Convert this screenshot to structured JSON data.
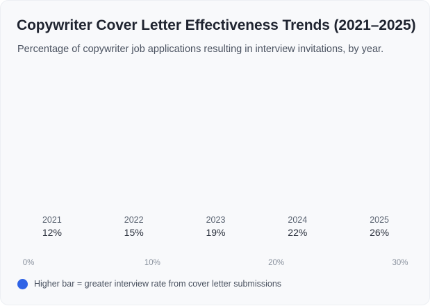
{
  "title": "Copywriter Cover Letter Effectiveness Trends (2021–2025)",
  "subtitle": "Percentage of copywriter job applications resulting in interview invitations, by year.",
  "legend": {
    "label": "Higher bar = greater interview rate from cover letter submissions",
    "color": "#2f63e6"
  },
  "chart_data": {
    "type": "bar",
    "categories": [
      "2021",
      "2022",
      "2023",
      "2024",
      "2025"
    ],
    "values": [
      12,
      15,
      19,
      22,
      26
    ],
    "value_labels": [
      "12%",
      "15%",
      "19%",
      "22%",
      "26%"
    ],
    "x_ticks": [
      "0%",
      "10%",
      "20%",
      "30%"
    ],
    "ylim": [
      0,
      30
    ],
    "grid": false,
    "bar_color": "#2f63e6",
    "legend_position": "bottom-left"
  }
}
